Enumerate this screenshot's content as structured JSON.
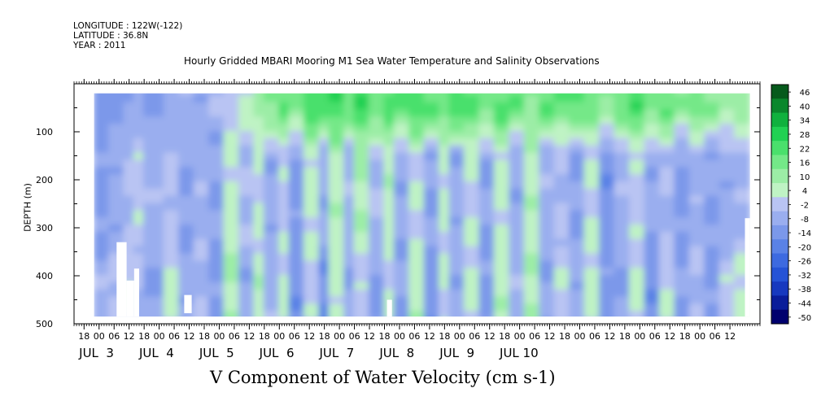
{
  "header": {
    "longitude": "LONGITUDE : 122W(-122)",
    "latitude": "LATITUDE : 36.8N",
    "year": "YEAR : 2011"
  },
  "chart_data": {
    "type": "heatmap",
    "title": "Hourly Gridded MBARI Mooring M1 Sea Water Temperature and Salinity Observations",
    "xlabel": "V Component of Water Velocity (cm s-1)",
    "ylabel": "DEPTH (m)",
    "x_axis": {
      "unit": "hours since JUL 3 00:00",
      "range": [
        -10,
        264
      ],
      "hour_ticks": [
        {
          "h": -6,
          "label": "18"
        },
        {
          "h": 0,
          "label": "00"
        },
        {
          "h": 6,
          "label": "06"
        },
        {
          "h": 12,
          "label": "12"
        },
        {
          "h": 18,
          "label": "18"
        },
        {
          "h": 24,
          "label": "00"
        },
        {
          "h": 30,
          "label": "06"
        },
        {
          "h": 36,
          "label": "12"
        },
        {
          "h": 42,
          "label": "18"
        },
        {
          "h": 48,
          "label": "00"
        },
        {
          "h": 54,
          "label": "06"
        },
        {
          "h": 60,
          "label": "12"
        },
        {
          "h": 66,
          "label": "18"
        },
        {
          "h": 72,
          "label": "00"
        },
        {
          "h": 78,
          "label": "06"
        },
        {
          "h": 84,
          "label": "12"
        },
        {
          "h": 90,
          "label": "18"
        },
        {
          "h": 96,
          "label": "00"
        },
        {
          "h": 102,
          "label": "06"
        },
        {
          "h": 108,
          "label": "12"
        },
        {
          "h": 114,
          "label": "18"
        },
        {
          "h": 120,
          "label": "00"
        },
        {
          "h": 126,
          "label": "06"
        },
        {
          "h": 132,
          "label": "12"
        },
        {
          "h": 138,
          "label": "18"
        },
        {
          "h": 144,
          "label": "00"
        },
        {
          "h": 150,
          "label": "06"
        },
        {
          "h": 156,
          "label": "12"
        },
        {
          "h": 162,
          "label": "18"
        },
        {
          "h": 168,
          "label": "00"
        },
        {
          "h": 174,
          "label": "06"
        },
        {
          "h": 180,
          "label": "12"
        },
        {
          "h": 186,
          "label": "18"
        },
        {
          "h": 192,
          "label": "00"
        },
        {
          "h": 198,
          "label": "06"
        },
        {
          "h": 204,
          "label": "12"
        },
        {
          "h": 210,
          "label": "18"
        },
        {
          "h": 216,
          "label": "00"
        },
        {
          "h": 222,
          "label": "06"
        },
        {
          "h": 228,
          "label": "12"
        },
        {
          "h": 234,
          "label": "18"
        },
        {
          "h": 240,
          "label": "00"
        },
        {
          "h": 246,
          "label": "06"
        },
        {
          "h": 252,
          "label": "12"
        }
      ],
      "day_labels": [
        {
          "h": -8,
          "label": "JUL  3"
        },
        {
          "h": 16,
          "label": "JUL  4"
        },
        {
          "h": 40,
          "label": "JUL  5"
        },
        {
          "h": 64,
          "label": "JUL  6"
        },
        {
          "h": 88,
          "label": "JUL  7"
        },
        {
          "h": 112,
          "label": "JUL  8"
        },
        {
          "h": 136,
          "label": "JUL  9"
        },
        {
          "h": 160,
          "label": "JUL 10"
        }
      ]
    },
    "y_axis": {
      "unit": "m",
      "range": [
        0,
        500
      ],
      "inverted": true,
      "ticks": [
        100,
        200,
        300,
        400,
        500
      ],
      "tick_labels": [
        "100",
        "200",
        "300",
        "400",
        "500"
      ]
    },
    "data_extent": {
      "hours": [
        -2,
        260
      ],
      "depth_m": [
        20,
        485
      ]
    },
    "colorbar": {
      "labels": [
        "46",
        "40",
        "34",
        "28",
        "22",
        "16",
        "10",
        "4",
        "-2",
        "-8",
        "-14",
        "-20",
        "-26",
        "-32",
        "-38",
        "-44",
        "-50"
      ],
      "level_edges": [
        -50,
        -44,
        -38,
        -32,
        -26,
        -20,
        -14,
        -8,
        -2,
        4,
        10,
        16,
        22,
        28,
        34,
        40,
        46,
        52
      ],
      "colors": [
        "#00006e",
        "#0a1d9a",
        "#1739bf",
        "#2553d6",
        "#3d6ae0",
        "#5a82e6",
        "#7b98ea",
        "#9aaeef",
        "#b9c4f3",
        "#bff3c4",
        "#9ceda6",
        "#74e888",
        "#4ae06c",
        "#21d153",
        "#10b13e",
        "#0a872c",
        "#065a1c"
      ]
    },
    "columns": [
      {
        "h0": -2,
        "h1": 4,
        "top": -12,
        "mid": -10,
        "deep": -4
      },
      {
        "h0": 4,
        "h1": 10,
        "top": -10,
        "mid": -6,
        "deep": 0
      },
      {
        "h0": 10,
        "h1": 14,
        "top": -8,
        "mid": -2,
        "deep": 4
      },
      {
        "h0": 14,
        "h1": 18,
        "top": -6,
        "mid": 2,
        "deep": -2
      },
      {
        "h0": 18,
        "h1": 26,
        "top": -9,
        "mid": -4,
        "deep": -8
      },
      {
        "h0": 26,
        "h1": 32,
        "top": -6,
        "mid": 0,
        "deep": 6
      },
      {
        "h0": 32,
        "h1": 38,
        "top": -4,
        "mid": -8,
        "deep": -6
      },
      {
        "h0": 38,
        "h1": 44,
        "top": -6,
        "mid": -4,
        "deep": -2
      },
      {
        "h0": 44,
        "h1": 50,
        "top": -3,
        "mid": -8,
        "deep": -10
      },
      {
        "h0": 50,
        "h1": 56,
        "top": 2,
        "mid": 6,
        "deep": 10
      },
      {
        "h0": 56,
        "h1": 62,
        "top": 6,
        "mid": -2,
        "deep": -6
      },
      {
        "h0": 62,
        "h1": 66,
        "top": 12,
        "mid": 4,
        "deep": 8
      },
      {
        "h0": 66,
        "h1": 72,
        "top": 18,
        "mid": -6,
        "deep": -4
      },
      {
        "h0": 72,
        "h1": 76,
        "top": 22,
        "mid": 2,
        "deep": 6
      },
      {
        "h0": 76,
        "h1": 82,
        "top": 16,
        "mid": -10,
        "deep": -12
      },
      {
        "h0": 82,
        "h1": 88,
        "top": 26,
        "mid": 6,
        "deep": 2
      },
      {
        "h0": 88,
        "h1": 92,
        "top": 24,
        "mid": -6,
        "deep": -14
      },
      {
        "h0": 92,
        "h1": 98,
        "top": 28,
        "mid": 8,
        "deep": 6
      },
      {
        "h0": 98,
        "h1": 102,
        "top": 22,
        "mid": -4,
        "deep": -8
      },
      {
        "h0": 102,
        "h1": 108,
        "top": 26,
        "mid": 10,
        "deep": 2
      },
      {
        "h0": 108,
        "h1": 114,
        "top": 20,
        "mid": -2,
        "deep": -10
      },
      {
        "h0": 114,
        "h1": 118,
        "top": 24,
        "mid": 8,
        "deep": 4
      },
      {
        "h0": 118,
        "h1": 124,
        "top": 22,
        "mid": -6,
        "deep": -8
      },
      {
        "h0": 124,
        "h1": 130,
        "top": 26,
        "mid": 4,
        "deep": 8
      },
      {
        "h0": 130,
        "h1": 136,
        "top": 22,
        "mid": -8,
        "deep": -12
      },
      {
        "h0": 136,
        "h1": 140,
        "top": 18,
        "mid": 6,
        "deep": 4
      },
      {
        "h0": 140,
        "h1": 146,
        "top": 26,
        "mid": -6,
        "deep": -6
      },
      {
        "h0": 146,
        "h1": 152,
        "top": 22,
        "mid": 4,
        "deep": 6
      },
      {
        "h0": 152,
        "h1": 158,
        "top": 18,
        "mid": -8,
        "deep": -10
      },
      {
        "h0": 158,
        "h1": 164,
        "top": 24,
        "mid": 6,
        "deep": 8
      },
      {
        "h0": 164,
        "h1": 170,
        "top": 20,
        "mid": -6,
        "deep": -4
      },
      {
        "h0": 170,
        "h1": 176,
        "top": 16,
        "mid": 8,
        "deep": 10
      },
      {
        "h0": 176,
        "h1": 182,
        "top": 22,
        "mid": -4,
        "deep": -8
      },
      {
        "h0": 182,
        "h1": 188,
        "top": 20,
        "mid": -2,
        "deep": 4
      },
      {
        "h0": 188,
        "h1": 194,
        "top": 24,
        "mid": -8,
        "deep": -6
      },
      {
        "h0": 194,
        "h1": 200,
        "top": 18,
        "mid": 4,
        "deep": 6
      },
      {
        "h0": 200,
        "h1": 206,
        "top": 14,
        "mid": -12,
        "deep": -10
      },
      {
        "h0": 206,
        "h1": 212,
        "top": 20,
        "mid": -4,
        "deep": -8
      },
      {
        "h0": 212,
        "h1": 218,
        "top": 26,
        "mid": 2,
        "deep": 6
      },
      {
        "h0": 218,
        "h1": 224,
        "top": 18,
        "mid": -6,
        "deep": -12
      },
      {
        "h0": 224,
        "h1": 230,
        "top": 22,
        "mid": -2,
        "deep": 4
      },
      {
        "h0": 230,
        "h1": 236,
        "top": 14,
        "mid": -10,
        "deep": -8
      },
      {
        "h0": 236,
        "h1": 242,
        "top": 20,
        "mid": -4,
        "deep": -2
      },
      {
        "h0": 242,
        "h1": 248,
        "top": 16,
        "mid": -8,
        "deep": -10
      },
      {
        "h0": 248,
        "h1": 254,
        "top": 10,
        "mid": -6,
        "deep": 2
      },
      {
        "h0": 254,
        "h1": 260,
        "top": 14,
        "mid": -4,
        "deep": 6
      }
    ],
    "gaps": [
      {
        "h0": 7,
        "h1": 11,
        "d0": 330,
        "d1": 485
      },
      {
        "h0": 11,
        "h1": 14,
        "d0": 410,
        "d1": 485
      },
      {
        "h0": 14,
        "h1": 16,
        "d0": 385,
        "d1": 485
      },
      {
        "h0": 34,
        "h1": 37,
        "d0": 440,
        "d1": 478
      },
      {
        "h0": 115,
        "h1": 117,
        "d0": 450,
        "d1": 485
      },
      {
        "h0": 258,
        "h1": 260,
        "d0": 280,
        "d1": 485
      }
    ]
  }
}
